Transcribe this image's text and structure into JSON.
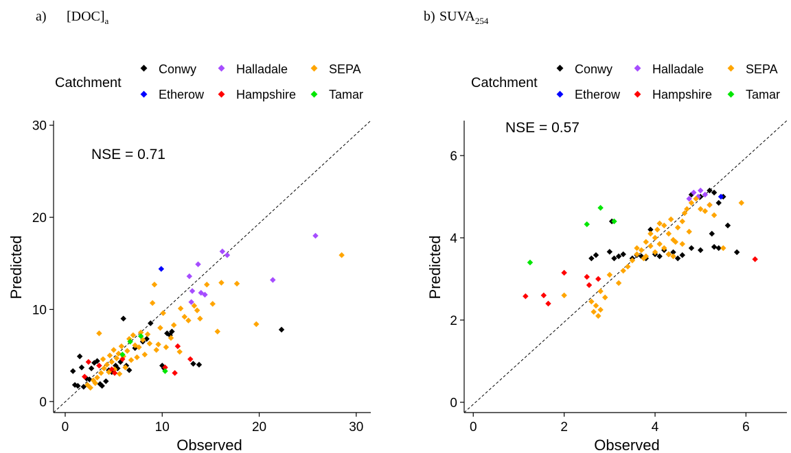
{
  "panels": [
    {
      "label": "a)",
      "title": "[DOC]",
      "title_sub": "a",
      "nse": "NSE = 0.71",
      "legend_title": "Catchment",
      "legend": [
        {
          "name": "Conwy",
          "color": "#000000"
        },
        {
          "name": "Halladale",
          "color": "#a64dff"
        },
        {
          "name": "SEPA",
          "color": "#ffa500"
        },
        {
          "name": "Etherow",
          "color": "#0000ff"
        },
        {
          "name": "Hampshire",
          "color": "#ff0000"
        },
        {
          "name": "Tamar",
          "color": "#00e600"
        }
      ],
      "xlabel": "Observed",
      "ylabel": "Predicted"
    },
    {
      "label": "b)",
      "title": "SUVA",
      "title_sub": "254",
      "nse": "NSE = 0.57",
      "legend_title": "Catchment",
      "legend": [
        {
          "name": "Conwy",
          "color": "#000000"
        },
        {
          "name": "Halladale",
          "color": "#a64dff"
        },
        {
          "name": "SEPA",
          "color": "#ffa500"
        },
        {
          "name": "Etherow",
          "color": "#0000ff"
        },
        {
          "name": "Hampshire",
          "color": "#ff0000"
        },
        {
          "name": "Tamar",
          "color": "#00e600"
        }
      ],
      "xlabel": "Observed",
      "ylabel": "Predicted"
    }
  ],
  "chart_data": [
    {
      "type": "scatter",
      "title": "[DOC]a",
      "xlabel": "Observed",
      "ylabel": "Predicted",
      "xlim": [
        -1.2,
        31.5
      ],
      "ylim": [
        -1.2,
        30.5
      ],
      "xticks": [
        0,
        10,
        20,
        30
      ],
      "yticks": [
        0,
        10,
        20,
        30
      ],
      "reference_line": "1:1",
      "annotation": "NSE = 0.71",
      "legend_position": "top",
      "grid": false,
      "series": [
        {
          "name": "Conwy",
          "color": "#000000",
          "points": [
            [
              0.8,
              3.3
            ],
            [
              1.0,
              1.8
            ],
            [
              1.3,
              1.7
            ],
            [
              1.5,
              4.9
            ],
            [
              1.7,
              3.7
            ],
            [
              1.9,
              1.6
            ],
            [
              2.2,
              2.5
            ],
            [
              2.5,
              2.4
            ],
            [
              2.7,
              3.6
            ],
            [
              3.0,
              4.2
            ],
            [
              3.3,
              4.4
            ],
            [
              3.6,
              1.9
            ],
            [
              3.8,
              1.7
            ],
            [
              4.2,
              2.2
            ],
            [
              4.5,
              3.4
            ],
            [
              4.8,
              3.2
            ],
            [
              5.2,
              3.9
            ],
            [
              5.4,
              3.6
            ],
            [
              5.7,
              4.3
            ],
            [
              6.0,
              9.0
            ],
            [
              6.3,
              3.9
            ],
            [
              6.6,
              3.4
            ],
            [
              7.2,
              5.8
            ],
            [
              8.0,
              6.5
            ],
            [
              8.4,
              6.8
            ],
            [
              8.8,
              8.5
            ],
            [
              10.0,
              3.9
            ],
            [
              10.2,
              3.6
            ],
            [
              10.5,
              7.4
            ],
            [
              10.8,
              7.2
            ],
            [
              11.0,
              7.6
            ],
            [
              13.2,
              4.1
            ],
            [
              13.8,
              4.0
            ],
            [
              22.3,
              7.8
            ]
          ]
        },
        {
          "name": "Halladale",
          "color": "#a64dff",
          "points": [
            [
              12.8,
              13.6
            ],
            [
              13.0,
              10.8
            ],
            [
              13.1,
              12.0
            ],
            [
              13.7,
              14.9
            ],
            [
              14.0,
              11.8
            ],
            [
              14.4,
              11.6
            ],
            [
              16.2,
              16.3
            ],
            [
              16.7,
              15.9
            ],
            [
              21.4,
              13.2
            ],
            [
              25.8,
              18.0
            ]
          ]
        },
        {
          "name": "SEPA",
          "color": "#ffa500",
          "points": [
            [
              2.3,
              1.8
            ],
            [
              2.6,
              1.5
            ],
            [
              2.9,
              2.3
            ],
            [
              3.1,
              2.0
            ],
            [
              3.3,
              2.6
            ],
            [
              3.5,
              7.4
            ],
            [
              3.7,
              3.1
            ],
            [
              3.9,
              4.6
            ],
            [
              4.0,
              3.6
            ],
            [
              4.3,
              4.0
            ],
            [
              4.5,
              3.2
            ],
            [
              4.6,
              5.0
            ],
            [
              4.8,
              4.3
            ],
            [
              5.0,
              5.6
            ],
            [
              5.1,
              3.5
            ],
            [
              5.3,
              4.7
            ],
            [
              5.5,
              5.2
            ],
            [
              5.6,
              3.0
            ],
            [
              5.8,
              6.0
            ],
            [
              6.0,
              4.9
            ],
            [
              6.2,
              3.7
            ],
            [
              6.4,
              5.5
            ],
            [
              6.6,
              6.8
            ],
            [
              6.8,
              4.5
            ],
            [
              7.0,
              7.2
            ],
            [
              7.2,
              6.1
            ],
            [
              7.4,
              4.8
            ],
            [
              7.6,
              5.9
            ],
            [
              7.8,
              7.5
            ],
            [
              8.0,
              6.7
            ],
            [
              8.2,
              5.1
            ],
            [
              8.5,
              7.3
            ],
            [
              8.7,
              6.3
            ],
            [
              9.0,
              10.7
            ],
            [
              9.2,
              12.7
            ],
            [
              9.4,
              5.6
            ],
            [
              9.6,
              6.2
            ],
            [
              9.8,
              8.0
            ],
            [
              10.1,
              9.6
            ],
            [
              10.4,
              5.9
            ],
            [
              10.9,
              6.9
            ],
            [
              11.2,
              8.3
            ],
            [
              11.8,
              5.4
            ],
            [
              11.9,
              10.1
            ],
            [
              12.3,
              9.2
            ],
            [
              12.7,
              8.8
            ],
            [
              13.3,
              10.4
            ],
            [
              13.6,
              9.9
            ],
            [
              13.9,
              9.0
            ],
            [
              14.6,
              12.7
            ],
            [
              15.2,
              10.6
            ],
            [
              15.7,
              7.6
            ],
            [
              16.1,
              12.9
            ],
            [
              17.7,
              12.8
            ],
            [
              19.7,
              8.4
            ],
            [
              28.5,
              15.9
            ]
          ]
        },
        {
          "name": "Etherow",
          "color": "#0000ff",
          "points": [
            [
              9.9,
              14.4
            ]
          ]
        },
        {
          "name": "Hampshire",
          "color": "#ff0000",
          "points": [
            [
              2.0,
              2.7
            ],
            [
              2.4,
              4.3
            ],
            [
              3.5,
              3.9
            ],
            [
              4.8,
              3.5
            ],
            [
              5.1,
              3.1
            ],
            [
              5.9,
              4.6
            ],
            [
              10.3,
              3.7
            ],
            [
              11.6,
              6.0
            ],
            [
              12.9,
              4.6
            ],
            [
              11.3,
              3.1
            ]
          ]
        },
        {
          "name": "Tamar",
          "color": "#00e600",
          "points": [
            [
              5.9,
              5.1
            ],
            [
              6.7,
              6.5
            ],
            [
              7.8,
              7.1
            ],
            [
              10.3,
              3.3
            ]
          ]
        }
      ]
    },
    {
      "type": "scatter",
      "title": "SUVA254",
      "xlabel": "Observed",
      "ylabel": "Predicted",
      "xlim": [
        -0.2,
        6.9
      ],
      "ylim": [
        -0.25,
        6.85
      ],
      "xticks": [
        0,
        2,
        4,
        6
      ],
      "yticks": [
        0,
        2,
        4,
        6
      ],
      "reference_line": "1:1",
      "annotation": "NSE = 0.57",
      "legend_position": "top",
      "grid": false,
      "series": [
        {
          "name": "Conwy",
          "color": "#000000",
          "points": [
            [
              2.6,
              3.5
            ],
            [
              2.7,
              3.58
            ],
            [
              3.0,
              3.66
            ],
            [
              3.1,
              3.5
            ],
            [
              3.2,
              3.55
            ],
            [
              3.3,
              3.6
            ],
            [
              3.5,
              3.5
            ],
            [
              3.6,
              3.58
            ],
            [
              3.7,
              3.55
            ],
            [
              3.8,
              3.5
            ],
            [
              3.9,
              4.2
            ],
            [
              4.0,
              3.6
            ],
            [
              4.1,
              3.55
            ],
            [
              4.2,
              3.7
            ],
            [
              4.3,
              3.6
            ],
            [
              4.4,
              3.65
            ],
            [
              4.5,
              3.5
            ],
            [
              4.6,
              3.58
            ],
            [
              4.8,
              3.75
            ],
            [
              5.0,
              3.7
            ],
            [
              5.3,
              3.78
            ],
            [
              5.4,
              3.75
            ],
            [
              5.6,
              4.3
            ],
            [
              5.8,
              3.65
            ],
            [
              3.05,
              4.4
            ],
            [
              5.0,
              5.0
            ],
            [
              5.2,
              5.15
            ],
            [
              5.3,
              5.1
            ],
            [
              5.4,
              4.85
            ],
            [
              5.5,
              5.0
            ],
            [
              5.25,
              4.1
            ],
            [
              4.8,
              5.05
            ]
          ]
        },
        {
          "name": "Halladale",
          "color": "#a64dff",
          "points": [
            [
              4.75,
              4.95
            ],
            [
              4.85,
              5.1
            ],
            [
              4.95,
              5.0
            ],
            [
              5.0,
              5.15
            ],
            [
              5.1,
              5.05
            ],
            [
              5.2,
              4.8
            ]
          ]
        },
        {
          "name": "SEPA",
          "color": "#ffa500",
          "points": [
            [
              2.0,
              2.6
            ],
            [
              2.6,
              2.45
            ],
            [
              2.65,
              2.2
            ],
            [
              2.7,
              2.35
            ],
            [
              2.75,
              2.1
            ],
            [
              2.8,
              2.25
            ],
            [
              2.8,
              2.7
            ],
            [
              2.9,
              2.55
            ],
            [
              3.0,
              3.1
            ],
            [
              3.2,
              2.9
            ],
            [
              3.3,
              3.2
            ],
            [
              3.4,
              3.3
            ],
            [
              3.5,
              3.45
            ],
            [
              3.6,
              3.6
            ],
            [
              3.7,
              3.7
            ],
            [
              3.75,
              3.5
            ],
            [
              3.8,
              3.9
            ],
            [
              3.9,
              3.8
            ],
            [
              4.0,
              4.0
            ],
            [
              4.05,
              4.2
            ],
            [
              4.1,
              3.85
            ],
            [
              4.2,
              4.3
            ],
            [
              4.3,
              4.1
            ],
            [
              4.35,
              4.45
            ],
            [
              4.4,
              3.95
            ],
            [
              4.5,
              4.25
            ],
            [
              4.6,
              4.4
            ],
            [
              4.65,
              4.6
            ],
            [
              4.7,
              4.7
            ],
            [
              4.75,
              4.15
            ],
            [
              4.8,
              4.85
            ],
            [
              4.9,
              4.95
            ],
            [
              5.0,
              4.7
            ],
            [
              5.1,
              4.65
            ],
            [
              5.2,
              4.8
            ],
            [
              5.3,
              4.55
            ],
            [
              5.5,
              3.75
            ],
            [
              5.9,
              4.85
            ],
            [
              3.6,
              3.75
            ],
            [
              3.8,
              3.55
            ],
            [
              4.0,
              3.65
            ],
            [
              4.2,
              3.75
            ],
            [
              4.4,
              3.55
            ],
            [
              4.6,
              3.85
            ],
            [
              3.9,
              4.1
            ],
            [
              4.1,
              4.35
            ],
            [
              4.3,
              3.6
            ],
            [
              4.45,
              3.9
            ]
          ]
        },
        {
          "name": "Etherow",
          "color": "#0000ff",
          "points": [
            [
              5.45,
              5.0
            ]
          ]
        },
        {
          "name": "Hampshire",
          "color": "#ff0000",
          "points": [
            [
              1.15,
              2.58
            ],
            [
              1.55,
              2.6
            ],
            [
              1.65,
              2.4
            ],
            [
              2.0,
              3.15
            ],
            [
              2.5,
              3.05
            ],
            [
              2.55,
              2.85
            ],
            [
              2.75,
              3.0
            ],
            [
              6.2,
              3.48
            ]
          ]
        },
        {
          "name": "Tamar",
          "color": "#00e600",
          "points": [
            [
              1.25,
              3.4
            ],
            [
              2.5,
              4.33
            ],
            [
              2.8,
              4.73
            ],
            [
              3.1,
              4.4
            ]
          ]
        }
      ]
    }
  ]
}
